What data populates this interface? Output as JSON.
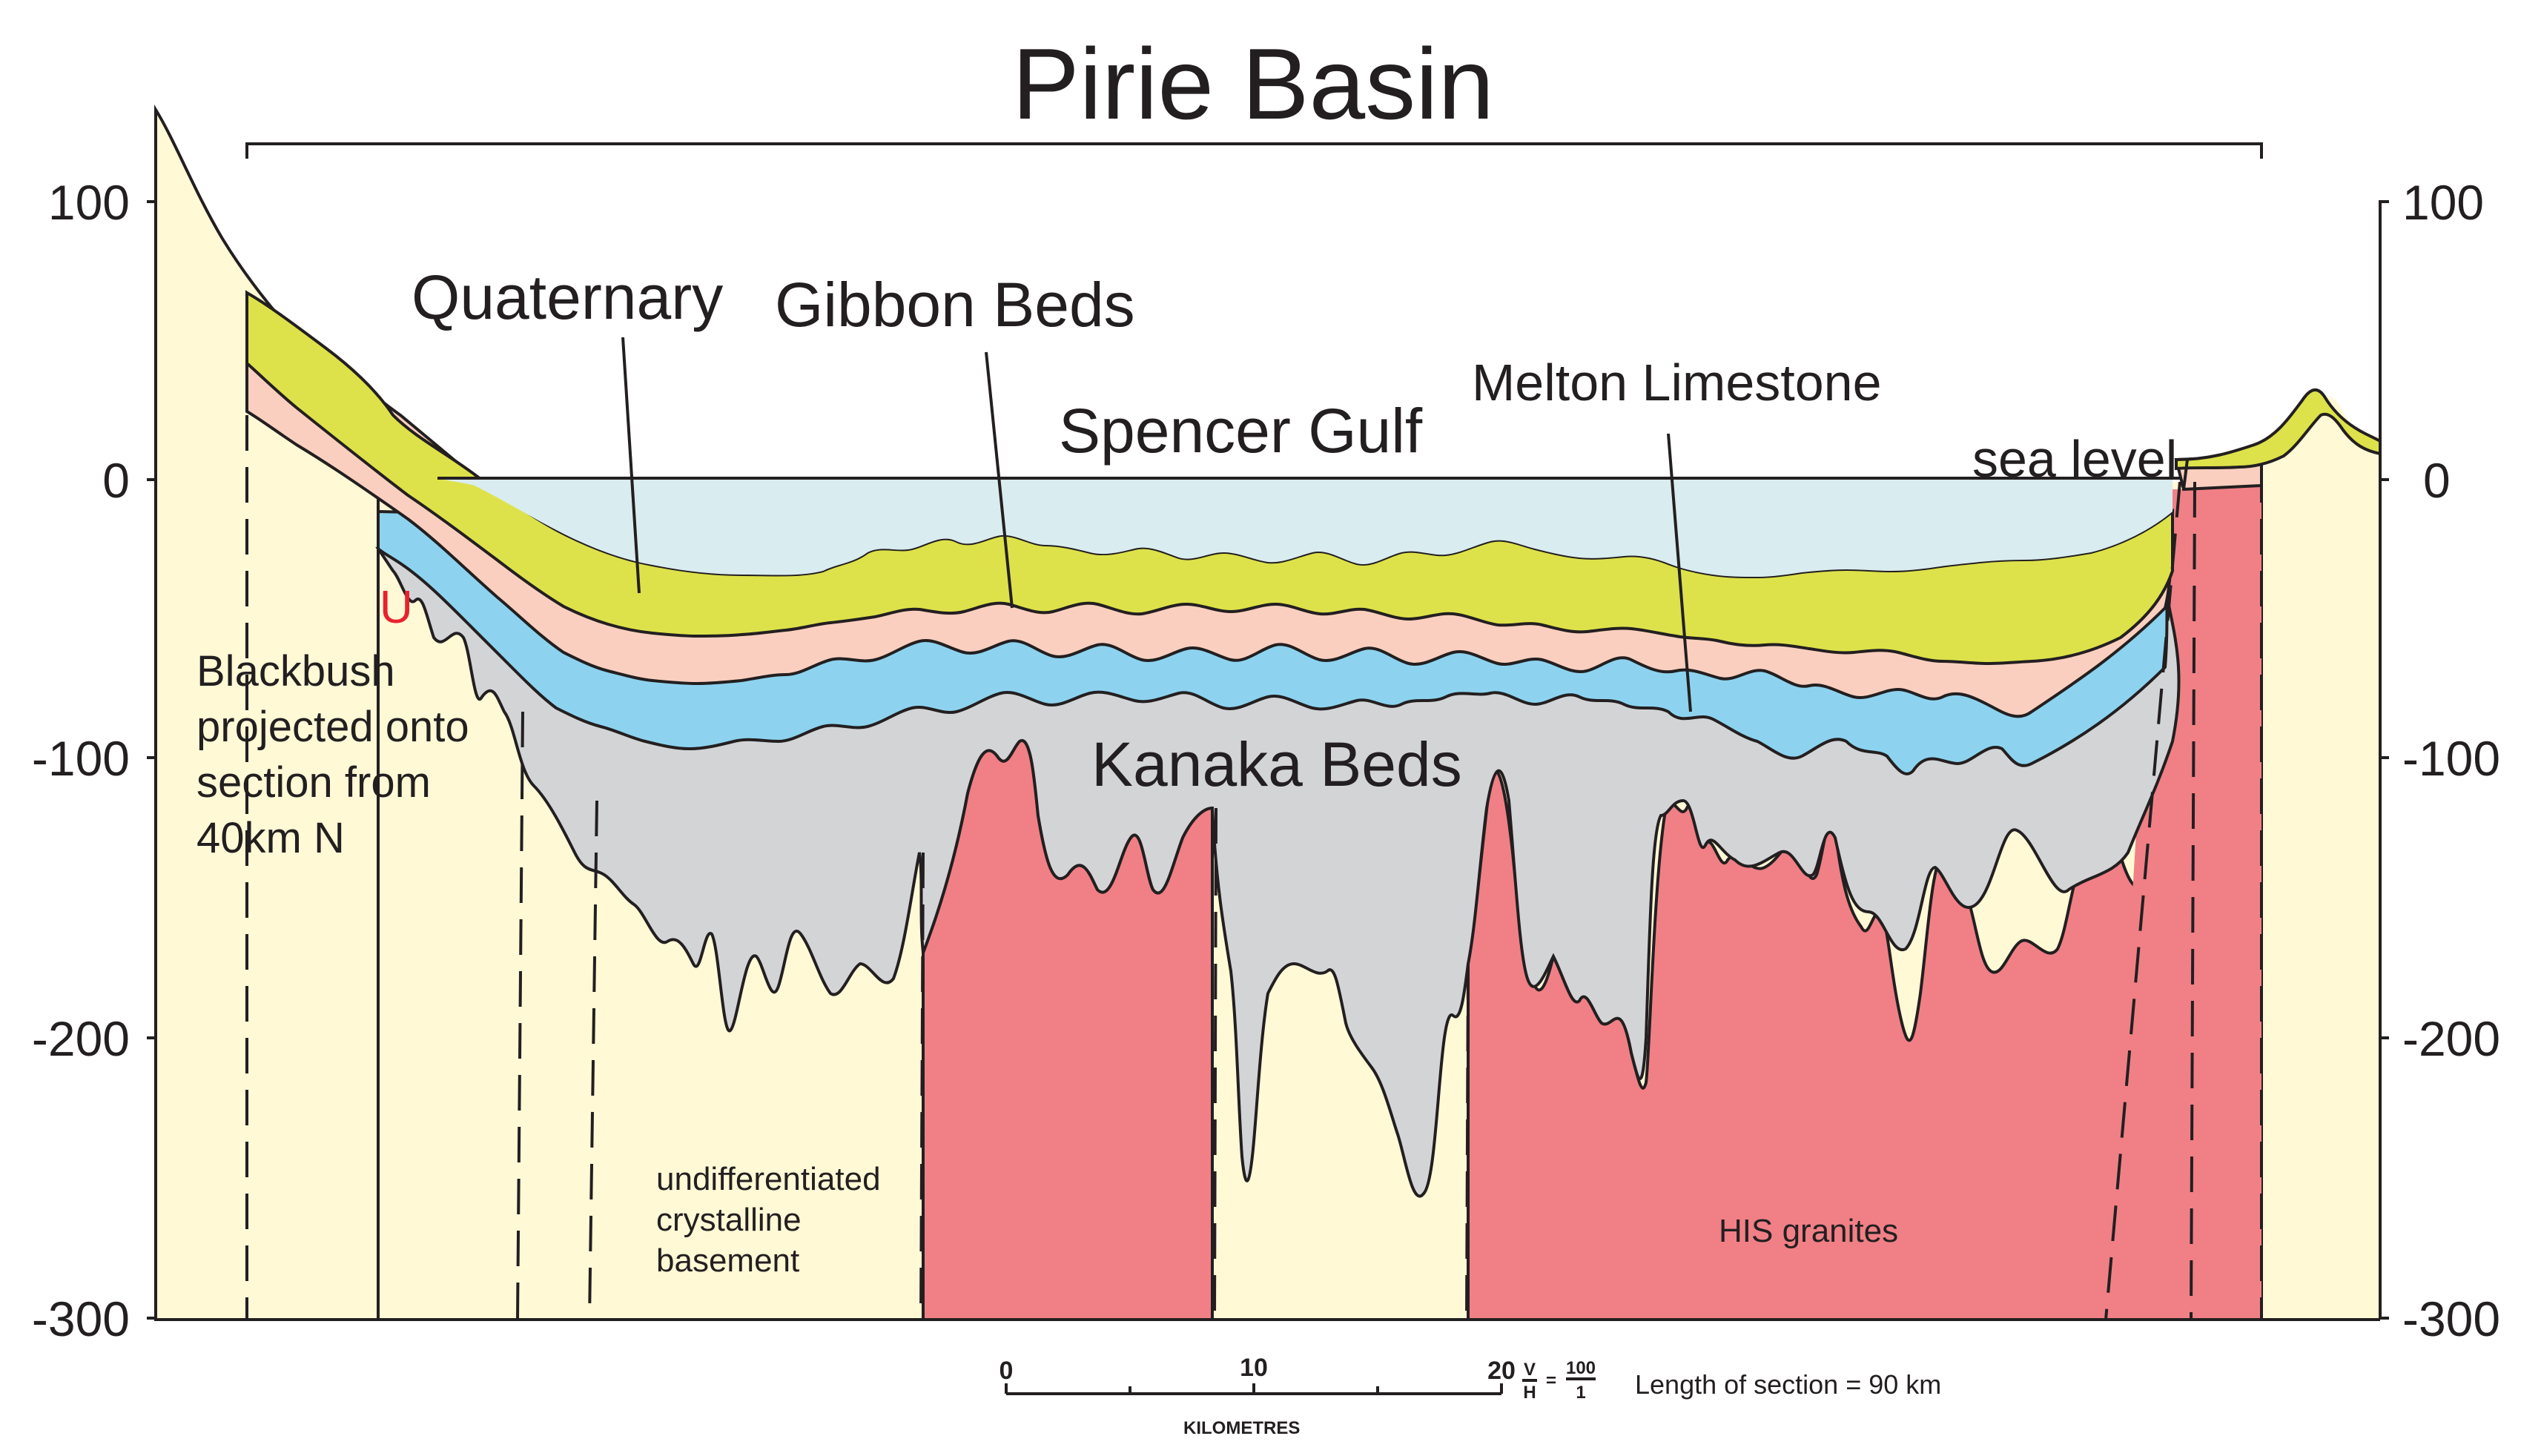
{
  "title": "Pirie Basin",
  "axis": {
    "left_ticks": [
      "100",
      "0",
      "-100",
      "-200",
      "-300"
    ],
    "right_ticks": [
      "100",
      "0",
      "-100",
      "-200",
      "-300"
    ]
  },
  "labels": {
    "quaternary": "Quaternary",
    "gibbon_beds": "Gibbon Beds",
    "spencer_gulf": "Spencer Gulf",
    "melton_limestone": "Melton Limestone",
    "sea_level": "sea level",
    "kanaka_beds": "Kanaka Beds",
    "blackbush": [
      "Blackbush",
      "projected onto",
      "section from",
      "40km N"
    ],
    "basement": [
      "undifferentiated",
      "crystalline",
      "basement"
    ],
    "his_granites": "HIS granites",
    "uranium_marker": "U"
  },
  "scale_bar": {
    "ticks": [
      "0",
      "10",
      "20"
    ],
    "unit": "KILOMETRES",
    "exaggeration_v": "V",
    "exaggeration_h": "H",
    "exaggeration_num": "100",
    "exaggeration_den": "1",
    "length_note": "Length of section = 90 km"
  },
  "colors": {
    "basement": "#fff9d6",
    "granite": "#f08086",
    "kanaka": "#d3d4d6",
    "melton": "#8dd3ef",
    "gibbon": "#fbcfbf",
    "quaternary": "#dde24a",
    "sea": "#d9ecef",
    "uranium": "#e8222e"
  }
}
